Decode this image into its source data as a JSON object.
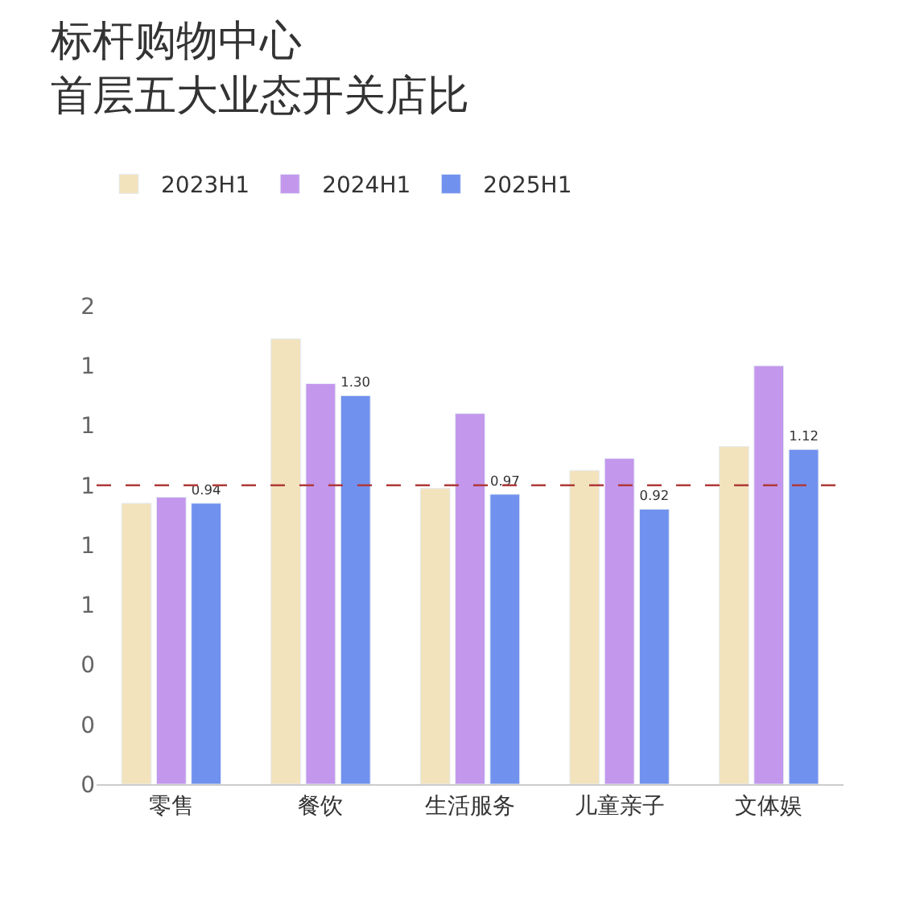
{
  "chart_data": {
    "type": "bar",
    "title": "标杆购物中心",
    "subtitle": "首层五大业态开关店比",
    "categories": [
      "零售",
      "餐饮",
      "生活服务",
      "儿童亲子",
      "文体娱"
    ],
    "series": [
      {
        "name": "2023H1",
        "color": "#f3e3bd",
        "values": [
          0.94,
          1.49,
          0.99,
          1.05,
          1.13
        ]
      },
      {
        "name": "2024H1",
        "color": "#c397ec",
        "values": [
          0.96,
          1.34,
          1.24,
          1.09,
          1.4
        ]
      },
      {
        "name": "2025H1",
        "color": "#7191ee",
        "values": [
          0.94,
          1.3,
          0.97,
          0.92,
          1.12
        ],
        "value_labels": [
          "0.94",
          "1.30",
          "0.97",
          "0.92",
          "1.12"
        ]
      }
    ],
    "ylim": [
      0,
      1.6
    ],
    "yticks": [
      {
        "value": 0,
        "label": "0"
      },
      {
        "value": 0.2,
        "label": "0"
      },
      {
        "value": 0.4,
        "label": "0"
      },
      {
        "value": 0.6,
        "label": "1"
      },
      {
        "value": 0.8,
        "label": "1"
      },
      {
        "value": 1.0,
        "label": "1"
      },
      {
        "value": 1.2,
        "label": "1"
      },
      {
        "value": 1.4,
        "label": "1"
      },
      {
        "value": 1.6,
        "label": "2"
      }
    ],
    "ref_lines": [
      {
        "axis": "y",
        "value": 1.0,
        "color": "#b03a3a",
        "line_style": "dashed"
      }
    ],
    "legend": "top left"
  }
}
